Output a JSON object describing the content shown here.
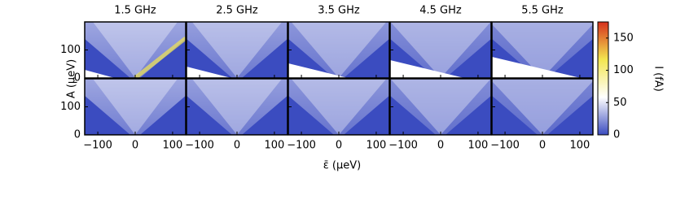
{
  "chart_data": {
    "type": "heatmap",
    "panel_titles": [
      "1.5 GHz",
      "2.5 GHz",
      "3.5 GHz",
      "4.5 GHz",
      "5.5 GHz"
    ],
    "xlabel": "ε̄ (μeV)",
    "ylabel": "A (μeV)",
    "xlim": [
      -135,
      135
    ],
    "xticks": [
      {
        "value": -100,
        "label": "−100"
      },
      0,
      100
    ],
    "ylim": [
      0,
      200
    ],
    "yticks": [
      0,
      100
    ],
    "colorbar": {
      "label": "I (fA)",
      "lim": [
        0,
        175
      ],
      "ticks": [
        0,
        50,
        100,
        150
      ],
      "colors": [
        "#3b4cc0",
        "#ffffff",
        "#f3e650",
        "#d6301d"
      ]
    }
  }
}
